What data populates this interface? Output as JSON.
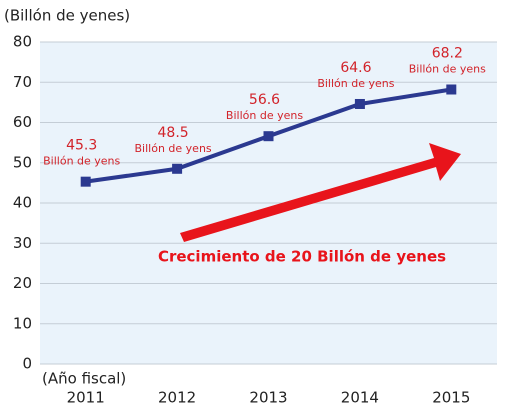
{
  "chart_data": {
    "type": "line",
    "y_axis_label": "(Billón de yenes)",
    "x_axis_label": "(Año fiscal)",
    "categories": [
      "2011",
      "2012",
      "2013",
      "2014",
      "2015"
    ],
    "series": [
      {
        "name": "Billón de yenes",
        "color": "#2b3990",
        "values": [
          45.3,
          48.5,
          56.6,
          64.6,
          68.2
        ]
      }
    ],
    "value_unit": "Billón de yens",
    "label_color": "#d2232a",
    "annotation": "Crecimiento de 20 Billón de yenes",
    "annotation_color": "#e8141b",
    "ylim": [
      0,
      80
    ],
    "yticks": [
      0,
      10,
      20,
      30,
      40,
      50,
      60,
      70,
      80
    ],
    "grid": true,
    "background": "#eaf3fb"
  }
}
